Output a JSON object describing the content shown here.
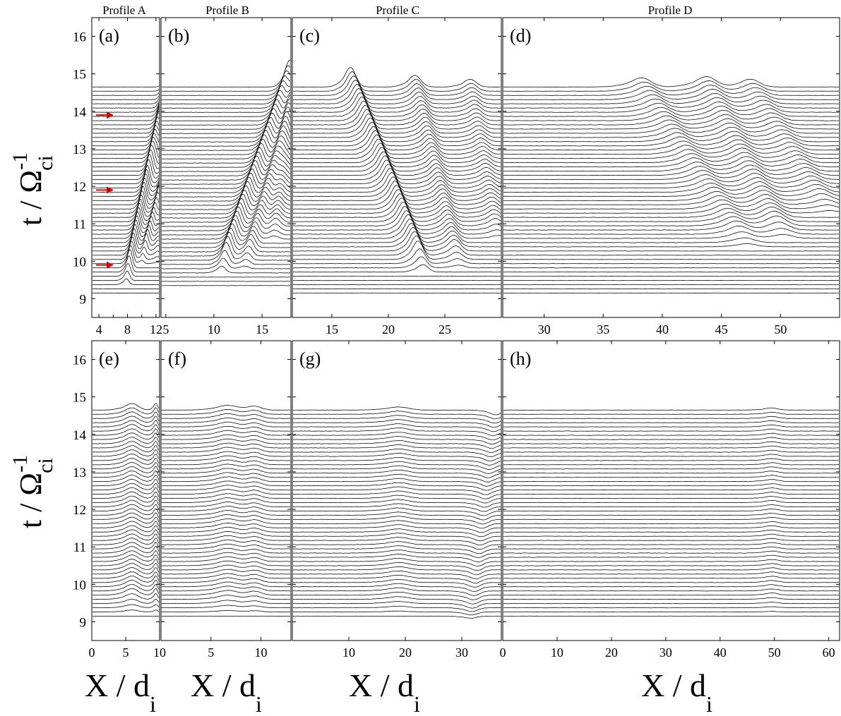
{
  "figure": {
    "ylabel_main": "t / Ω",
    "ylabel_sup": "-1",
    "ylabel_sub": "ci",
    "xlabel_main": "X / d",
    "xlabel_sub": "i",
    "y_ticks": [
      "9",
      "10",
      "11",
      "12",
      "13",
      "14",
      "15",
      "16"
    ],
    "trace_color": "#000000",
    "arrow_color": "#e00000"
  },
  "chart_data": [
    {
      "type": "line",
      "panel": "(a)",
      "column_title": "Profile A",
      "x_ticks": [
        "4",
        "8",
        "12"
      ],
      "minor_x_ticks": [
        "6",
        "10"
      ],
      "xlim": [
        3,
        12.5
      ],
      "ylim": [
        8.5,
        16.5
      ],
      "t_range": [
        9.15,
        14.65
      ],
      "n_traces": 50,
      "amplitude_scale": 1.8,
      "markers": [
        {
          "label": "arrow",
          "t": 9.9
        },
        {
          "label": "arrow",
          "t": 11.9
        },
        {
          "label": "arrow",
          "t": 13.9
        }
      ],
      "features": [
        {
          "x0": 7.6,
          "t0": 9.3,
          "speed": 1.1,
          "amp": 0.7,
          "width": 0.6
        },
        {
          "x0": 9.8,
          "t0": 9.9,
          "speed": 1.5,
          "amp": 0.5,
          "width": 0.5
        },
        {
          "x0": 12.0,
          "t0": 9.9,
          "speed": 0.3,
          "amp": 0.25,
          "width": 0.6
        },
        {
          "x0": 11.0,
          "t0": 12.1,
          "speed": 1.5,
          "amp": 0.35,
          "width": 0.5
        }
      ]
    },
    {
      "type": "line",
      "panel": "(b)",
      "column_title": "Profile B",
      "x_ticks": [
        "5",
        "10",
        "15"
      ],
      "xlim": [
        4.5,
        18
      ],
      "ylim": [
        8.5,
        16.5
      ],
      "t_range": [
        9.35,
        14.65
      ],
      "n_traces": 48,
      "amplitude_scale": 1.8,
      "features": [
        {
          "x0": 10.5,
          "t0": 9.6,
          "speed": 1.4,
          "amp": 0.75,
          "width": 0.7
        },
        {
          "x0": 13.0,
          "t0": 9.8,
          "speed": 1.2,
          "amp": 0.5,
          "width": 0.7
        },
        {
          "x0": 16.0,
          "t0": 10.5,
          "speed": 0.5,
          "amp": 0.35,
          "width": 0.8
        }
      ]
    },
    {
      "type": "line",
      "panel": "(c)",
      "column_title": "Profile C",
      "x_ticks": [
        "15",
        "20",
        "25"
      ],
      "xlim": [
        11.5,
        30
      ],
      "ylim": [
        8.5,
        16.5
      ],
      "t_range": [
        9.15,
        14.65
      ],
      "n_traces": 50,
      "amplitude_scale": 1.8,
      "features": [
        {
          "x0": 23.0,
          "t0": 9.6,
          "speed": -1.3,
          "amp": 0.75,
          "width": 0.8
        },
        {
          "x0": 26.0,
          "t0": 9.8,
          "speed": -0.8,
          "amp": 0.45,
          "width": 0.9
        },
        {
          "x0": 29.5,
          "t0": 10.5,
          "speed": -0.6,
          "amp": 0.3,
          "width": 0.9
        }
      ]
    },
    {
      "type": "line",
      "panel": "(d)",
      "column_title": "Profile D",
      "x_ticks": [
        "30",
        "35",
        "40",
        "45",
        "50"
      ],
      "xlim": [
        26.5,
        55
      ],
      "ylim": [
        8.5,
        16.5
      ],
      "t_range": [
        9.15,
        14.65
      ],
      "n_traces": 50,
      "amplitude_scale": 1.8,
      "features": [
        {
          "x0": 47.0,
          "t0": 10.3,
          "speed": -2.1,
          "amp": 0.35,
          "width": 1.4
        },
        {
          "x0": 50.0,
          "t0": 10.5,
          "speed": -1.6,
          "amp": 0.4,
          "width": 1.4
        },
        {
          "x0": 54.0,
          "t0": 11.2,
          "speed": -2.0,
          "amp": 0.3,
          "width": 1.3
        }
      ]
    },
    {
      "type": "line",
      "panel": "(e)",
      "x_ticks": [
        "0",
        "5",
        "10"
      ],
      "xlim": [
        0,
        10
      ],
      "ylim": [
        8.5,
        16.5
      ],
      "t_range": [
        9.15,
        14.65
      ],
      "n_traces": 50,
      "amplitude_scale": 1.8,
      "features": [
        {
          "x0": 5.5,
          "t0": 9.2,
          "speed": 0,
          "amp": 0.25,
          "width": 1.6
        },
        {
          "x0": 9.3,
          "t0": 9.2,
          "speed": 0,
          "amp": 0.25,
          "width": 0.5
        }
      ]
    },
    {
      "type": "line",
      "panel": "(f)",
      "x_ticks": [
        "5",
        "10"
      ],
      "xlim": [
        0,
        13
      ],
      "ylim": [
        8.5,
        16.5
      ],
      "t_range": [
        9.15,
        14.65
      ],
      "n_traces": 50,
      "amplitude_scale": 1.8,
      "features": [
        {
          "x0": 6.2,
          "t0": 9.2,
          "speed": 0,
          "amp": 0.18,
          "width": 1.6
        },
        {
          "x0": 9.0,
          "t0": 9.2,
          "speed": 0,
          "amp": 0.15,
          "width": 1.2
        }
      ]
    },
    {
      "type": "line",
      "panel": "(g)",
      "x_ticks": [
        "10",
        "20",
        "30"
      ],
      "xlim": [
        0,
        37
      ],
      "ylim": [
        8.5,
        16.5
      ],
      "t_range": [
        9.15,
        14.65
      ],
      "n_traces": 50,
      "amplitude_scale": 1.8,
      "features": [
        {
          "x0": 31.0,
          "t0": 9.0,
          "speed": 0.8,
          "amp": -0.18,
          "width": 1.8
        },
        {
          "x0": 18.0,
          "t0": 9.2,
          "speed": 0,
          "amp": 0.12,
          "width": 3.0
        }
      ]
    },
    {
      "type": "line",
      "panel": "(h)",
      "x_ticks": [
        "0",
        "10",
        "20",
        "30",
        "40",
        "50",
        "60"
      ],
      "xlim": [
        0,
        62
      ],
      "ylim": [
        8.5,
        16.5
      ],
      "t_range": [
        9.15,
        14.65
      ],
      "n_traces": 50,
      "amplitude_scale": 1.8,
      "features": [
        {
          "x0": 49.0,
          "t0": 9.2,
          "speed": 0,
          "amp": 0.08,
          "width": 2.0
        }
      ]
    }
  ]
}
